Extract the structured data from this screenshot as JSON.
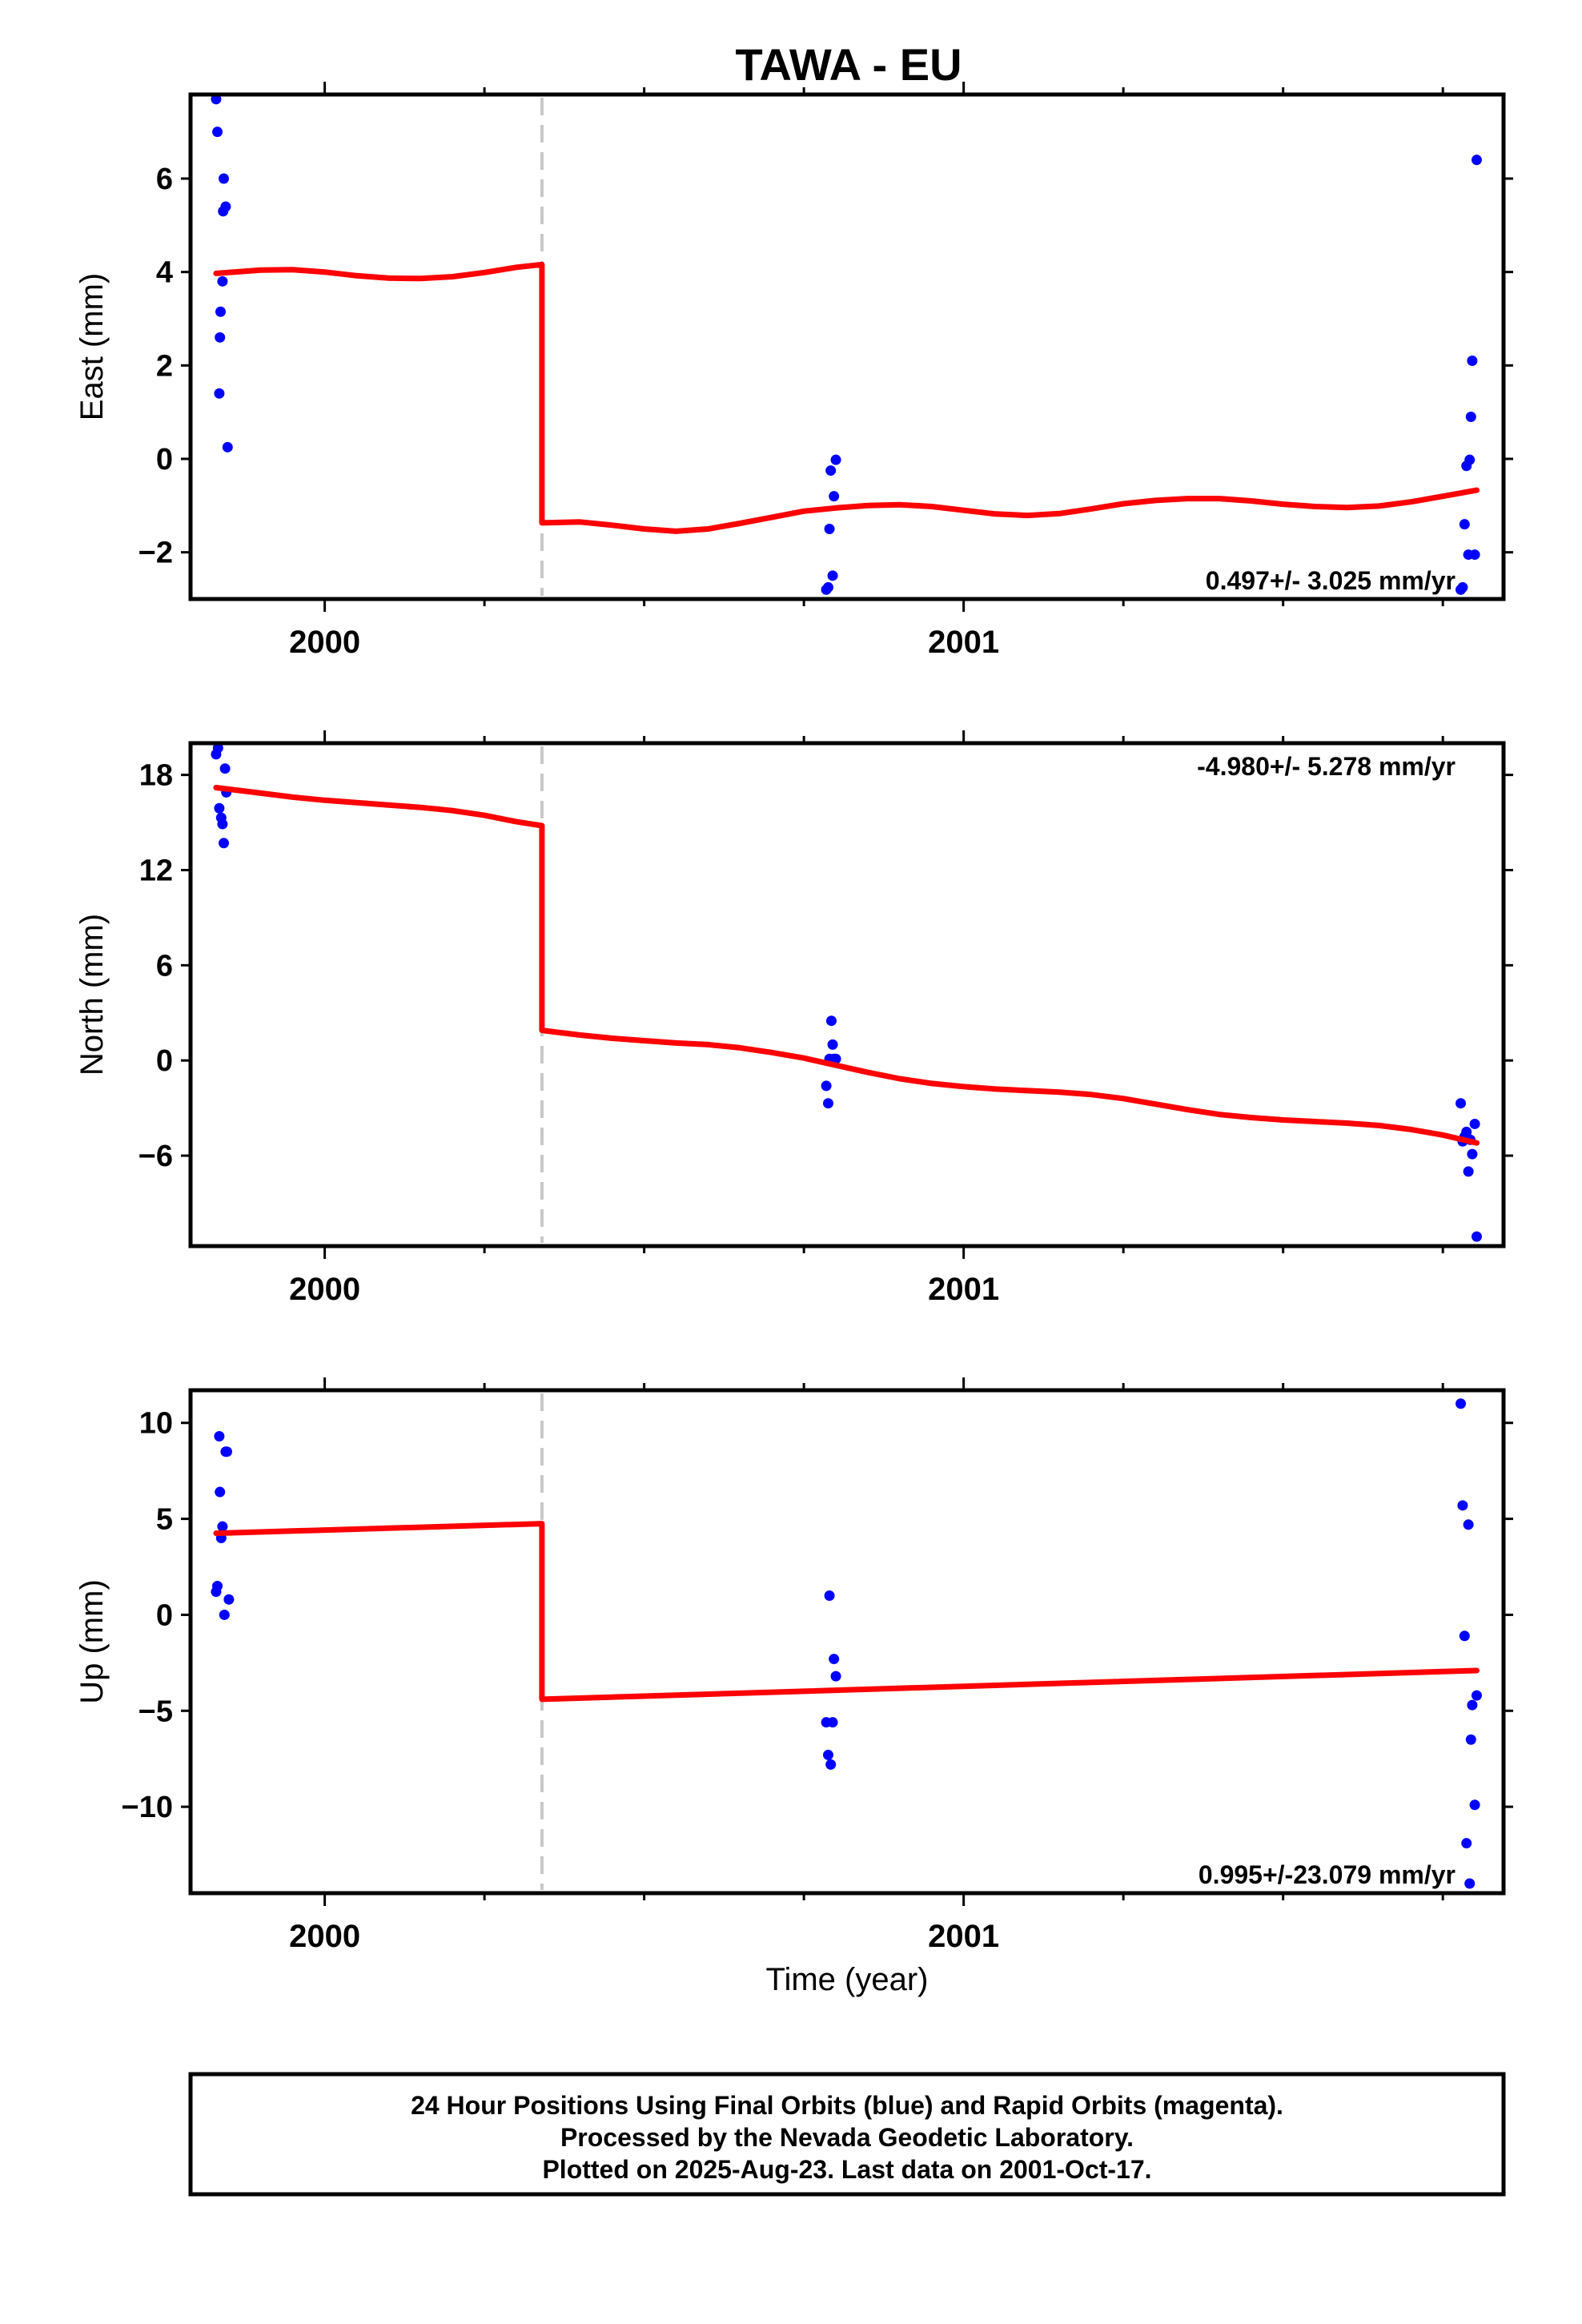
{
  "colors": {
    "observation": "#0000ff",
    "model": "#ff0000",
    "break_line": "#c8c8c8",
    "frame": "#000000"
  },
  "chart_data": {
    "title": "TAWA - EU",
    "type": "scatter",
    "x_range": [
      1999.79,
      2001.845
    ],
    "x_ticks": [
      {
        "value": 2000,
        "label": "2000"
      },
      {
        "value": 2001,
        "label": "2001"
      }
    ],
    "x_minor_ticks": [
      2000.25,
      2000.5,
      2000.75,
      2001.25,
      2001.5,
      2001.75
    ],
    "xlabel": "Time (year)",
    "break_epoch": 2000.34,
    "panels": [
      {
        "id": "east",
        "ylabel": "East (mm)",
        "ylim": [
          -3.0,
          7.8
        ],
        "y_ticks": [
          -2,
          0,
          2,
          4,
          6
        ],
        "y_tick_labels": [
          "−2",
          "0",
          "2",
          "4",
          "6"
        ],
        "rate_text": "0.497+/- 3.025 mm/yr",
        "rate_position": "bottom-right",
        "points": [
          [
            1999.83,
            7.7
          ],
          [
            1999.832,
            7.0
          ],
          [
            1999.835,
            1.4
          ],
          [
            1999.836,
            2.6
          ],
          [
            1999.837,
            3.15
          ],
          [
            1999.84,
            3.8
          ],
          [
            1999.841,
            5.3
          ],
          [
            1999.842,
            6.0
          ],
          [
            1999.845,
            5.4
          ],
          [
            1999.848,
            0.25
          ],
          [
            2000.785,
            -2.8
          ],
          [
            2000.788,
            -2.75
          ],
          [
            2000.79,
            -1.5
          ],
          [
            2000.792,
            -0.25
          ],
          [
            2000.795,
            -2.5
          ],
          [
            2000.797,
            -0.8
          ],
          [
            2000.8,
            -0.02
          ],
          [
            2001.778,
            -2.8
          ],
          [
            2001.781,
            -2.75
          ],
          [
            2001.784,
            -1.4
          ],
          [
            2001.787,
            -0.15
          ],
          [
            2001.79,
            -2.05
          ],
          [
            2001.792,
            -0.02
          ],
          [
            2001.794,
            0.9
          ],
          [
            2001.796,
            2.1
          ],
          [
            2001.8,
            -2.05
          ],
          [
            2001.803,
            6.4
          ]
        ],
        "model": [
          [
            1999.83,
            3.97
          ],
          [
            1999.9,
            4.04
          ],
          [
            1999.95,
            4.05
          ],
          [
            2000.0,
            4.0
          ],
          [
            2000.05,
            3.92
          ],
          [
            2000.1,
            3.87
          ],
          [
            2000.15,
            3.86
          ],
          [
            2000.2,
            3.9
          ],
          [
            2000.25,
            3.99
          ],
          [
            2000.3,
            4.1
          ],
          [
            2000.34,
            4.16
          ],
          [
            2000.34,
            -1.37
          ],
          [
            2000.4,
            -1.35
          ],
          [
            2000.45,
            -1.42
          ],
          [
            2000.5,
            -1.5
          ],
          [
            2000.55,
            -1.55
          ],
          [
            2000.6,
            -1.5
          ],
          [
            2000.65,
            -1.38
          ],
          [
            2000.7,
            -1.25
          ],
          [
            2000.75,
            -1.12
          ],
          [
            2000.8,
            -1.05
          ],
          [
            2000.85,
            -1.0
          ],
          [
            2000.9,
            -0.98
          ],
          [
            2000.95,
            -1.02
          ],
          [
            2001.0,
            -1.1
          ],
          [
            2001.05,
            -1.18
          ],
          [
            2001.1,
            -1.21
          ],
          [
            2001.15,
            -1.17
          ],
          [
            2001.2,
            -1.07
          ],
          [
            2001.25,
            -0.96
          ],
          [
            2001.3,
            -0.89
          ],
          [
            2001.35,
            -0.85
          ],
          [
            2001.4,
            -0.85
          ],
          [
            2001.45,
            -0.9
          ],
          [
            2001.5,
            -0.97
          ],
          [
            2001.55,
            -1.02
          ],
          [
            2001.6,
            -1.04
          ],
          [
            2001.65,
            -1.01
          ],
          [
            2001.7,
            -0.92
          ],
          [
            2001.75,
            -0.8
          ],
          [
            2001.803,
            -0.67
          ]
        ]
      },
      {
        "id": "north",
        "ylabel": "North (mm)",
        "ylim": [
          -11.7,
          20.0
        ],
        "y_ticks": [
          -6,
          0,
          6,
          12,
          18
        ],
        "y_tick_labels": [
          "−6",
          "0",
          "6",
          "12",
          "18"
        ],
        "rate_text": "-4.980+/- 5.278 mm/yr",
        "rate_position": "top-right",
        "points": [
          [
            1999.83,
            19.3
          ],
          [
            1999.833,
            19.7
          ],
          [
            1999.835,
            15.9
          ],
          [
            1999.838,
            15.3
          ],
          [
            1999.84,
            14.9
          ],
          [
            1999.842,
            13.7
          ],
          [
            1999.844,
            18.4
          ],
          [
            1999.846,
            16.9
          ],
          [
            2000.785,
            -1.6
          ],
          [
            2000.788,
            -2.7
          ],
          [
            2000.79,
            0.1
          ],
          [
            2000.793,
            2.5
          ],
          [
            2000.795,
            1.0
          ],
          [
            2000.797,
            0.1
          ],
          [
            2000.8,
            0.1
          ],
          [
            2001.778,
            -2.7
          ],
          [
            2001.781,
            -5.1
          ],
          [
            2001.784,
            -4.8
          ],
          [
            2001.787,
            -4.5
          ],
          [
            2001.79,
            -7.0
          ],
          [
            2001.793,
            -5.0
          ],
          [
            2001.796,
            -5.9
          ],
          [
            2001.8,
            -4.0
          ],
          [
            2001.803,
            -11.1
          ]
        ],
        "model": [
          [
            1999.83,
            17.2
          ],
          [
            1999.9,
            16.85
          ],
          [
            1999.95,
            16.6
          ],
          [
            2000.0,
            16.4
          ],
          [
            2000.05,
            16.25
          ],
          [
            2000.1,
            16.1
          ],
          [
            2000.15,
            15.95
          ],
          [
            2000.2,
            15.75
          ],
          [
            2000.25,
            15.45
          ],
          [
            2000.3,
            15.05
          ],
          [
            2000.34,
            14.8
          ],
          [
            2000.34,
            1.9
          ],
          [
            2000.4,
            1.6
          ],
          [
            2000.45,
            1.4
          ],
          [
            2000.5,
            1.25
          ],
          [
            2000.55,
            1.1
          ],
          [
            2000.6,
            1.0
          ],
          [
            2000.65,
            0.8
          ],
          [
            2000.7,
            0.5
          ],
          [
            2000.75,
            0.15
          ],
          [
            2000.8,
            -0.3
          ],
          [
            2000.85,
            -0.75
          ],
          [
            2000.9,
            -1.15
          ],
          [
            2000.95,
            -1.45
          ],
          [
            2001.0,
            -1.65
          ],
          [
            2001.05,
            -1.8
          ],
          [
            2001.1,
            -1.9
          ],
          [
            2001.15,
            -2.0
          ],
          [
            2001.2,
            -2.15
          ],
          [
            2001.25,
            -2.4
          ],
          [
            2001.3,
            -2.75
          ],
          [
            2001.35,
            -3.1
          ],
          [
            2001.4,
            -3.4
          ],
          [
            2001.45,
            -3.6
          ],
          [
            2001.5,
            -3.75
          ],
          [
            2001.55,
            -3.85
          ],
          [
            2001.6,
            -3.95
          ],
          [
            2001.65,
            -4.1
          ],
          [
            2001.7,
            -4.35
          ],
          [
            2001.75,
            -4.7
          ],
          [
            2001.803,
            -5.2
          ]
        ]
      },
      {
        "id": "up",
        "ylabel": "Up (mm)",
        "ylim": [
          -14.5,
          11.7
        ],
        "y_ticks": [
          -10,
          -5,
          0,
          5,
          10
        ],
        "y_tick_labels": [
          "−10",
          "−5",
          "0",
          "5",
          "10"
        ],
        "rate_text": "0.995+/-23.079 mm/yr",
        "rate_position": "bottom-right",
        "points": [
          [
            1999.83,
            1.2
          ],
          [
            1999.832,
            1.5
          ],
          [
            1999.835,
            9.3
          ],
          [
            1999.836,
            6.4
          ],
          [
            1999.838,
            4.0
          ],
          [
            1999.84,
            4.6
          ],
          [
            1999.843,
            0.0
          ],
          [
            1999.845,
            8.5
          ],
          [
            1999.847,
            8.5
          ],
          [
            1999.85,
            0.8
          ],
          [
            2000.785,
            -5.6
          ],
          [
            2000.788,
            -7.3
          ],
          [
            2000.79,
            1.0
          ],
          [
            2000.792,
            -7.8
          ],
          [
            2000.795,
            -5.6
          ],
          [
            2000.797,
            -2.3
          ],
          [
            2000.8,
            -3.2
          ],
          [
            2001.778,
            11.0
          ],
          [
            2001.781,
            5.7
          ],
          [
            2001.784,
            -1.1
          ],
          [
            2001.787,
            -11.9
          ],
          [
            2001.79,
            4.7
          ],
          [
            2001.792,
            -14.0
          ],
          [
            2001.794,
            -6.5
          ],
          [
            2001.796,
            -4.7
          ],
          [
            2001.8,
            -9.9
          ],
          [
            2001.803,
            -4.2
          ]
        ],
        "model": [
          [
            1999.83,
            4.25
          ],
          [
            2000.34,
            4.75
          ],
          [
            2000.34,
            -4.4
          ],
          [
            2001.803,
            -2.9
          ]
        ]
      }
    ]
  },
  "footer": {
    "line1": "24 Hour Positions Using Final Orbits (blue) and Rapid Orbits (magenta).",
    "line2": "Processed by the Nevada Geodetic Laboratory.",
    "line3": "Plotted on 2025-Aug-23. Last data on 2001-Oct-17."
  }
}
